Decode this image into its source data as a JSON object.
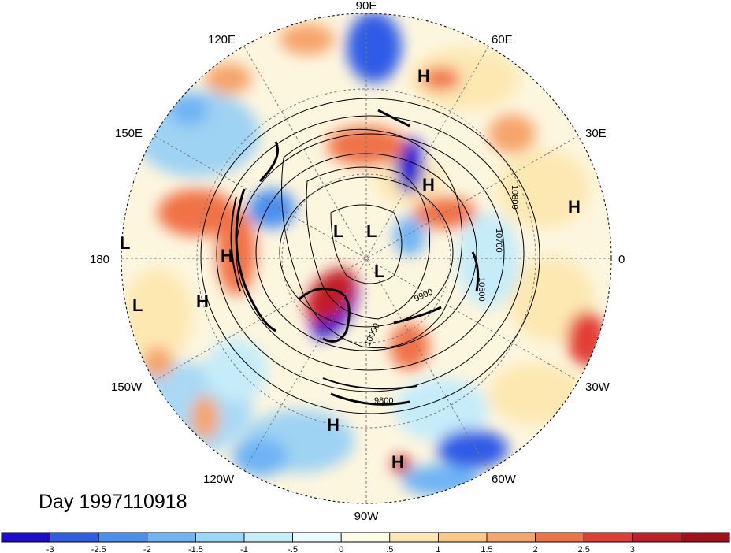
{
  "figure": {
    "day_label": "Day 1997110918"
  },
  "longitude_labels": [
    {
      "text": "90E"
    },
    {
      "text": "60E"
    },
    {
      "text": "120E"
    },
    {
      "text": "30E"
    },
    {
      "text": "150E"
    },
    {
      "text": "180"
    },
    {
      "text": "0"
    },
    {
      "text": "150W"
    },
    {
      "text": "30W"
    },
    {
      "text": "120W"
    },
    {
      "text": "60W"
    },
    {
      "text": "90W"
    }
  ],
  "pressure_centers": [
    {
      "text": "H"
    },
    {
      "text": "H"
    },
    {
      "text": "H"
    },
    {
      "text": "H"
    },
    {
      "text": "H"
    },
    {
      "text": "H"
    },
    {
      "text": "H"
    },
    {
      "text": "L"
    },
    {
      "text": "L"
    },
    {
      "text": "L"
    },
    {
      "text": "L"
    },
    {
      "text": "L"
    }
  ],
  "contour_labels": [
    {
      "text": "10800"
    },
    {
      "text": "10700"
    },
    {
      "text": "10600"
    },
    {
      "text": "9900"
    },
    {
      "text": "10000"
    },
    {
      "text": "9800"
    }
  ],
  "colorbar": {
    "colors": [
      "#1d0ad3",
      "#2f5ce6",
      "#4a8ff0",
      "#6eb4f5",
      "#99d8f8",
      "#c5eef9",
      "#e9fbfd",
      "#fdfce6",
      "#fde8b2",
      "#fcc887",
      "#f6a46a",
      "#f07246",
      "#e33c34",
      "#c21e28",
      "#a3101c"
    ],
    "tick_labels": [
      "-3",
      "-2.5",
      "-2",
      "-1.5",
      "-1",
      "-.5",
      "0",
      ".5",
      "1",
      "1.5",
      "2",
      "2.5",
      "3"
    ]
  }
}
